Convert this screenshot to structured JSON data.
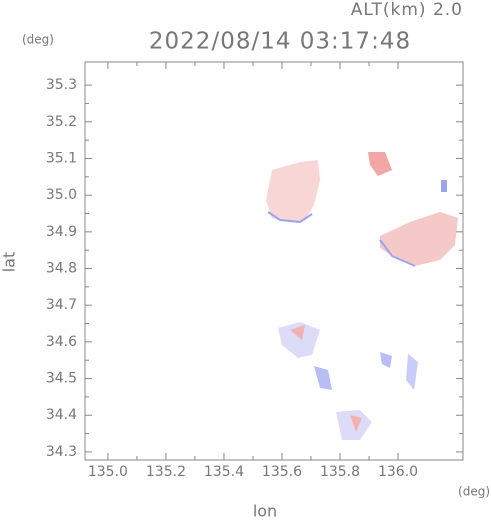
{
  "chart_data": {
    "type": "map",
    "title": "2022/08/14 03:17:48",
    "subtitle": "ALT(km) 2.0",
    "xlabel": "lon",
    "ylabel": "lat",
    "xunit": "(deg)",
    "yunit": "(deg)",
    "xlim": [
      134.921,
      136.224
    ],
    "ylim": [
      34.278,
      35.363
    ],
    "xticks": [
      {
        "value": 135,
        "label": "135.0"
      },
      135.2,
      135.4,
      135.6,
      135.8,
      {
        "value": 136,
        "label": "136.0"
      }
    ],
    "yticks": [
      34.3,
      34.4,
      34.5,
      34.6,
      34.7,
      34.8,
      34.9,
      {
        "value": 35,
        "label": "35.0"
      },
      35.1,
      35.2,
      35.3
    ]
  }
}
